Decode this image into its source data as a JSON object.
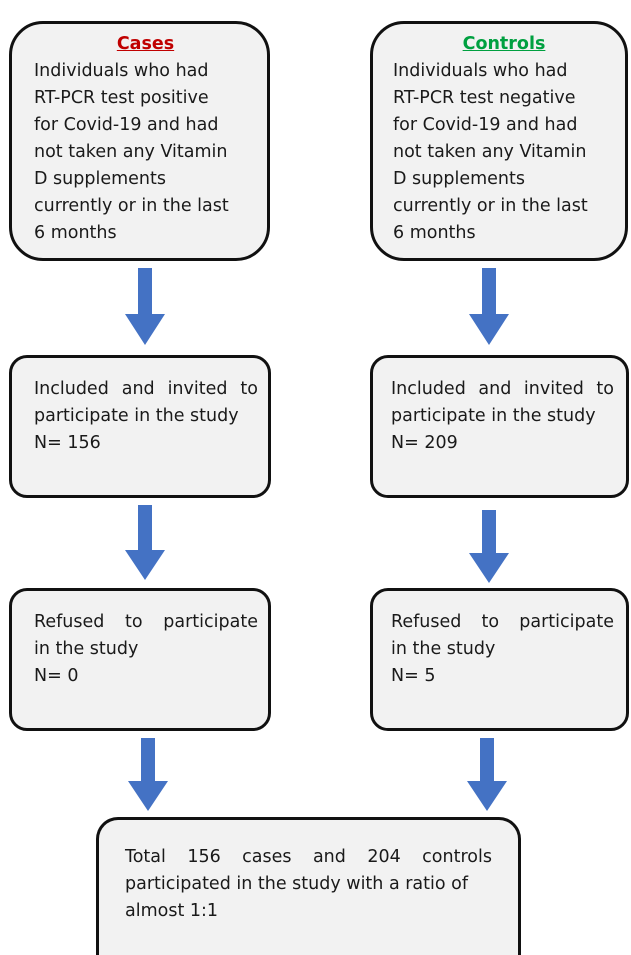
{
  "cases": {
    "heading": "Cases",
    "heading_color": "#c00000",
    "lines": [
      "Individuals who had",
      "RT-PCR test positive",
      "for Covid-19 and had",
      "not taken any Vitamin",
      "D supplements",
      "currently or in the last",
      "6 months"
    ],
    "included": {
      "line1": [
        "Included",
        "and",
        "invited",
        "to"
      ],
      "line2": "participate in the study",
      "count": "N= 156"
    },
    "refused": {
      "line1": [
        "Refused",
        "to",
        "participate"
      ],
      "line2": "in the study",
      "count": "N= 0"
    }
  },
  "controls": {
    "heading": "Controls",
    "heading_color": "#00a040",
    "lines": [
      "Individuals who had",
      "RT-PCR test negative",
      "for Covid-19 and had",
      "not taken any Vitamin",
      "D supplements",
      "currently or in the last",
      "6 months"
    ],
    "included": {
      "line1": [
        "Included",
        "and",
        "invited",
        "to"
      ],
      "line2": "participate in the study",
      "count": "N= 209"
    },
    "refused": {
      "line1": [
        "Refused",
        "to",
        "participate"
      ],
      "line2": "in the study",
      "count": "N= 5"
    }
  },
  "total": {
    "line1": [
      "Total",
      "156",
      "cases",
      "and",
      "204",
      "controls"
    ],
    "line2": "participated in the study with a ratio of",
    "line3": "almost 1:1"
  },
  "colors": {
    "arrow": "#4472c4",
    "box_fill": "#f2f2f2",
    "border": "#111111"
  }
}
